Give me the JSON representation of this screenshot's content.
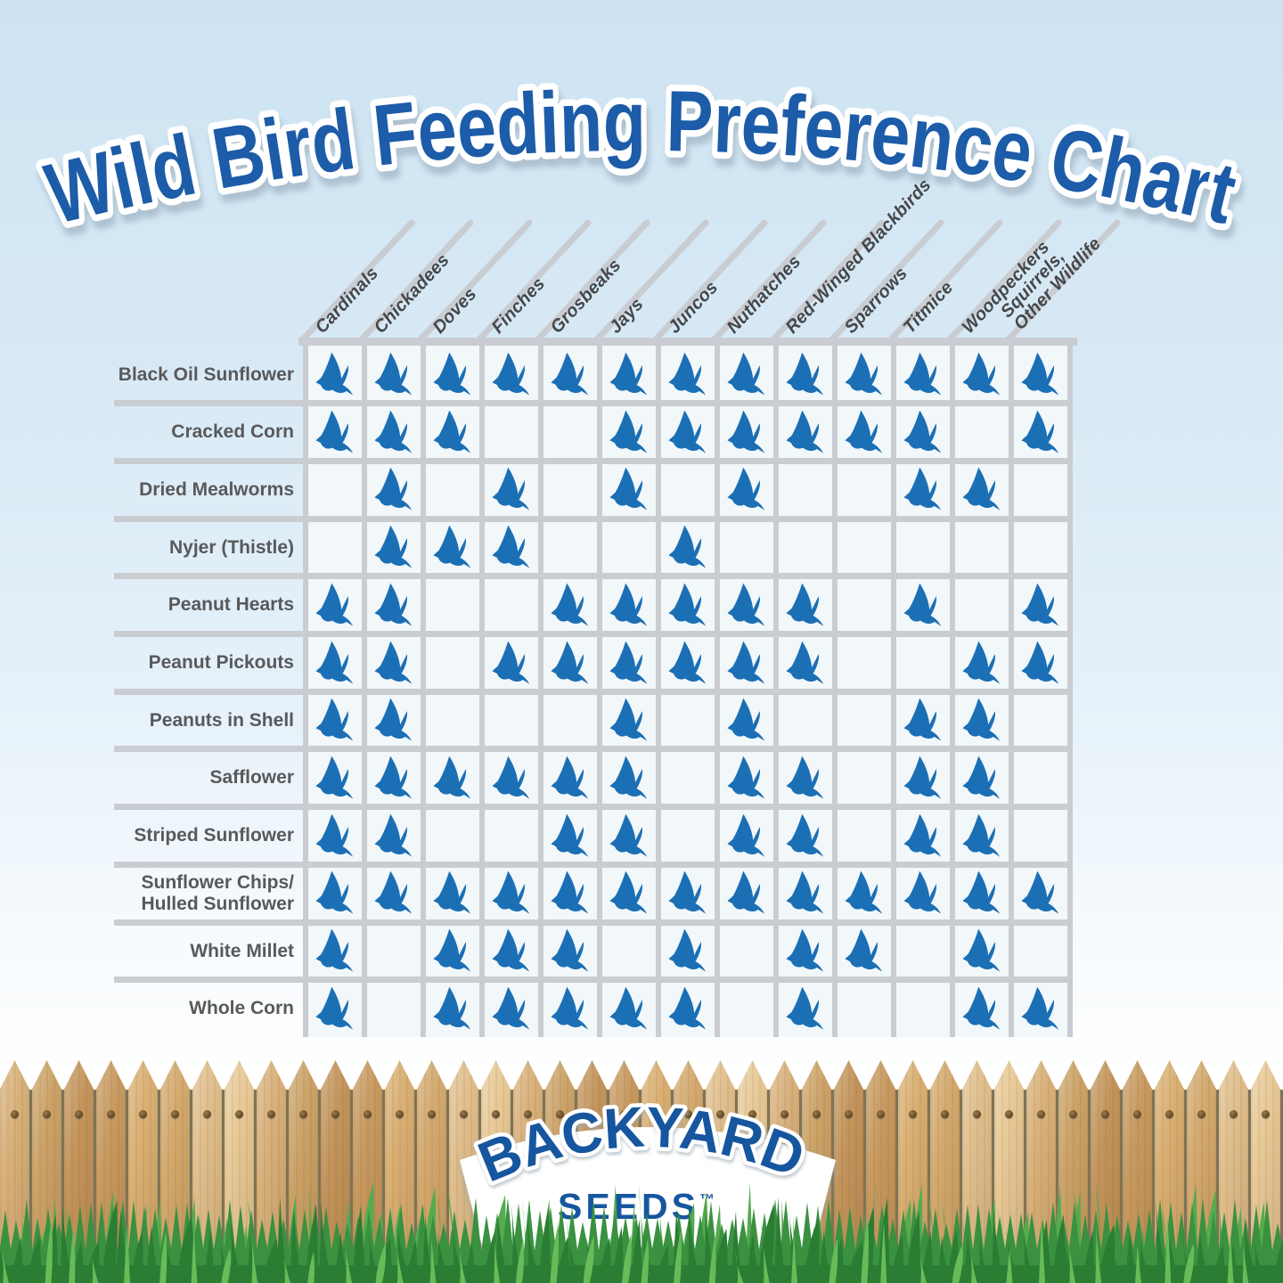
{
  "title": "Wild Bird Feeding Preference Chart",
  "chart_data": {
    "type": "table",
    "title": "Wild Bird Feeding Preference Chart",
    "mark_symbol": "bird-icon",
    "columns": [
      "Cardinals",
      "Chickadees",
      "Doves",
      "Finches",
      "Grosbeaks",
      "Jays",
      "Juncos",
      "Nuthatches",
      "Red-Winged Blackbirds",
      "Sparrows",
      "Titmice",
      "Woodpeckers",
      "Squirrels,\nOther Wildlife"
    ],
    "rows": [
      "Black Oil Sunflower",
      "Cracked Corn",
      "Dried Mealworms",
      "Nyjer (Thistle)",
      "Peanut Hearts",
      "Peanut Pickouts",
      "Peanuts in Shell",
      "Safflower",
      "Striped Sunflower",
      "Sunflower Chips/\nHulled Sunflower",
      "White Millet",
      "Whole Corn"
    ],
    "matrix": [
      [
        1,
        1,
        1,
        1,
        1,
        1,
        1,
        1,
        1,
        1,
        1,
        1,
        1
      ],
      [
        1,
        1,
        1,
        0,
        0,
        1,
        1,
        1,
        1,
        1,
        1,
        0,
        1
      ],
      [
        0,
        1,
        0,
        1,
        0,
        1,
        0,
        1,
        0,
        0,
        1,
        1,
        0
      ],
      [
        0,
        1,
        1,
        1,
        0,
        0,
        1,
        0,
        0,
        0,
        0,
        0,
        0
      ],
      [
        1,
        1,
        0,
        0,
        1,
        1,
        1,
        1,
        1,
        0,
        1,
        0,
        1
      ],
      [
        1,
        1,
        0,
        1,
        1,
        1,
        1,
        1,
        1,
        0,
        0,
        1,
        1
      ],
      [
        1,
        1,
        0,
        0,
        0,
        1,
        0,
        1,
        0,
        0,
        1,
        1,
        0
      ],
      [
        1,
        1,
        1,
        1,
        1,
        1,
        0,
        1,
        1,
        0,
        1,
        1,
        0
      ],
      [
        1,
        1,
        0,
        0,
        1,
        1,
        0,
        1,
        1,
        0,
        1,
        1,
        0
      ],
      [
        1,
        1,
        1,
        1,
        1,
        1,
        1,
        1,
        1,
        1,
        1,
        1,
        1
      ],
      [
        1,
        0,
        1,
        1,
        1,
        0,
        1,
        0,
        1,
        1,
        0,
        1,
        0
      ],
      [
        1,
        0,
        1,
        1,
        1,
        1,
        1,
        0,
        1,
        0,
        0,
        1,
        1
      ]
    ]
  },
  "logo": {
    "line1": "BACKYARD",
    "line2": "SEEDS",
    "tm": "™"
  },
  "colors": {
    "title_blue": "#1c5ca8",
    "logo_blue": "#17569f",
    "bird_blue": "#1b6fb5",
    "grid_line_gray": "#c9ccd1",
    "cell_bg": "#f2f7fa",
    "row_label_gray": "#58595b",
    "header_text_gray": "#45474a",
    "sky_blue": "#cde3f2",
    "fence_wood": [
      "#d8b07a",
      "#c79a60",
      "#e0be8c",
      "#cba368",
      "#d9af72",
      "#e7c996",
      "#c3955c",
      "#d3a96e"
    ],
    "fence_gap": "#7d7457",
    "nail_brown": "#6b4f2c",
    "grass_main": "#3a9140",
    "grass_dark": "#2b7d33",
    "grass_light": "#55ab4e",
    "grass_highlight": "#68bb58",
    "banner_white": "#ffffff"
  }
}
